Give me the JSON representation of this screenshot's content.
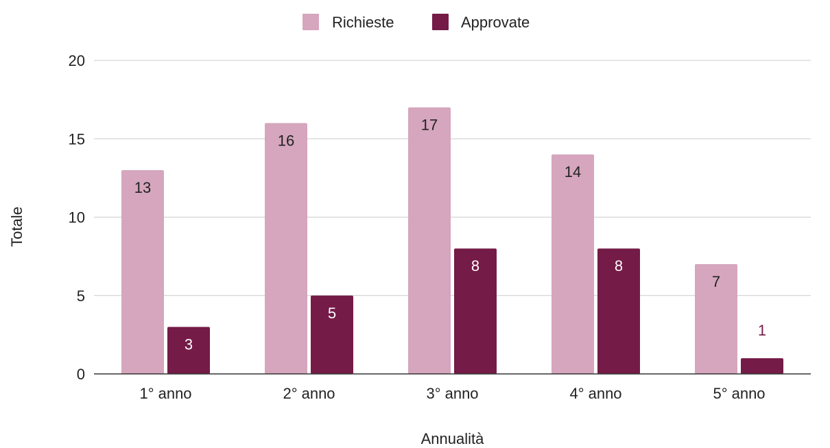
{
  "chart_data": {
    "type": "bar",
    "title": "",
    "xlabel": "Annualità",
    "ylabel": "Totale",
    "categories": [
      "1° anno",
      "2° anno",
      "3° anno",
      "4° anno",
      "5° anno"
    ],
    "series": [
      {
        "name": "Richieste",
        "color": "#d5a6bd",
        "label_color": "#222222",
        "values": [
          13,
          16,
          17,
          14,
          7
        ]
      },
      {
        "name": "Approvate",
        "color": "#741b47",
        "label_color": "#ffffff",
        "values": [
          3,
          5,
          8,
          8,
          1
        ]
      }
    ],
    "ylim": [
      0,
      20
    ],
    "yticks": [
      0,
      5,
      10,
      15,
      20
    ],
    "grid": true,
    "legend_position": "top",
    "outside_label_color": "#741b47"
  }
}
